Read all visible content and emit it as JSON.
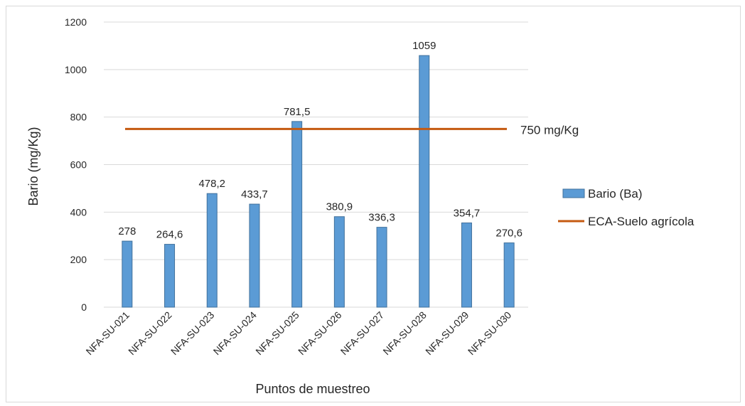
{
  "chart_data": {
    "type": "bar",
    "categories": [
      "NFA-SU-021",
      "NFA-SU-022",
      "NFA-SU-023",
      "NFA-SU-024",
      "NFA-SU-025",
      "NFA-SU-026",
      "NFA-SU-027",
      "NFA-SU-028",
      "NFA-SU-029",
      "NFA-SU-030"
    ],
    "series": [
      {
        "name": "Bario (Ba)",
        "type": "bar",
        "values": [
          278,
          264.6,
          478.2,
          433.7,
          781.5,
          380.9,
          336.3,
          1059,
          354.7,
          270.6
        ],
        "data_labels": [
          "278",
          "264,6",
          "478,2",
          "433,7",
          "781,5",
          "380,9",
          "336,3",
          "1059",
          "354,7",
          "270,6"
        ],
        "color": "#5b9bd5"
      },
      {
        "name": "ECA-Suelo agrícola",
        "type": "line",
        "value": 750,
        "label": "750 mg/Kg",
        "color": "#c55a11"
      }
    ],
    "xlabel": "Puntos de muestreo",
    "ylabel": "Bario (mg/Kg)",
    "ylim": [
      0,
      1200
    ],
    "yticks": [
      0,
      200,
      400,
      600,
      800,
      1000,
      1200
    ],
    "grid": true,
    "legend_position": "right"
  }
}
